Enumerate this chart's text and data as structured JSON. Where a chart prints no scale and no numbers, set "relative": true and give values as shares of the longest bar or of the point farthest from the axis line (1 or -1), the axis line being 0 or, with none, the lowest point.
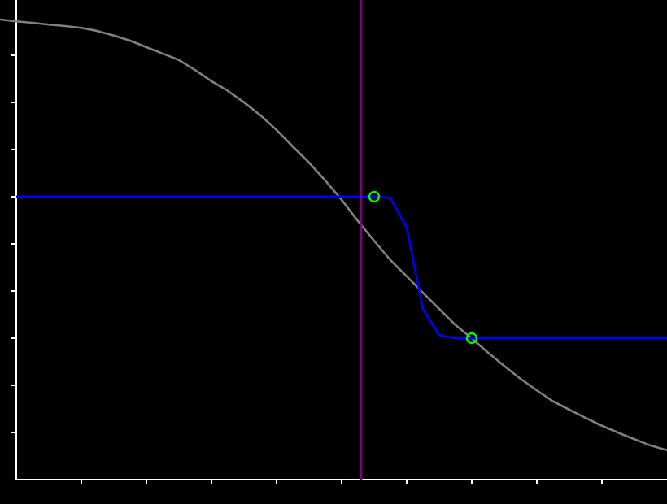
{
  "chart_data": {
    "type": "line",
    "relative": true,
    "categories": [
      null,
      null,
      null,
      null,
      null,
      null,
      null,
      null,
      null,
      null,
      null,
      null,
      null,
      null,
      null,
      null,
      null,
      null,
      null,
      null,
      null,
      null,
      null,
      null,
      null,
      null,
      null,
      null,
      null,
      null,
      null,
      null,
      null,
      null,
      null,
      null,
      null,
      null,
      null,
      null,
      null,
      null
    ],
    "series": [
      {
        "color": "#808080",
        "values": [
          1.0,
          0.996,
          0.993,
          0.989,
          0.986,
          0.982,
          0.975,
          0.965,
          0.954,
          0.94,
          0.926,
          0.912,
          0.89,
          0.866,
          0.845,
          0.82,
          0.792,
          0.76,
          0.724,
          0.689,
          0.65,
          0.608,
          0.562,
          0.519,
          0.477,
          0.442,
          0.406,
          0.371,
          0.336,
          0.307,
          0.276,
          0.247,
          0.219,
          0.194,
          0.17,
          0.152,
          0.134,
          0.117,
          0.102,
          0.088,
          0.074,
          0.064
        ]
      },
      {
        "color": "#0000ff",
        "values": [
          null,
          0.615,
          0.615,
          0.615,
          0.615,
          0.615,
          0.615,
          0.615,
          0.615,
          0.615,
          0.615,
          0.615,
          0.615,
          0.615,
          0.615,
          0.615,
          0.615,
          0.615,
          0.615,
          0.615,
          0.615,
          0.615,
          0.615,
          0.615,
          0.612,
          0.548,
          0.371,
          0.314,
          0.307,
          0.307,
          0.307,
          0.307,
          0.307,
          0.307,
          0.307,
          0.307,
          0.307,
          0.307,
          0.307,
          0.307,
          0.307,
          0.307
        ]
      }
    ]
  }
}
